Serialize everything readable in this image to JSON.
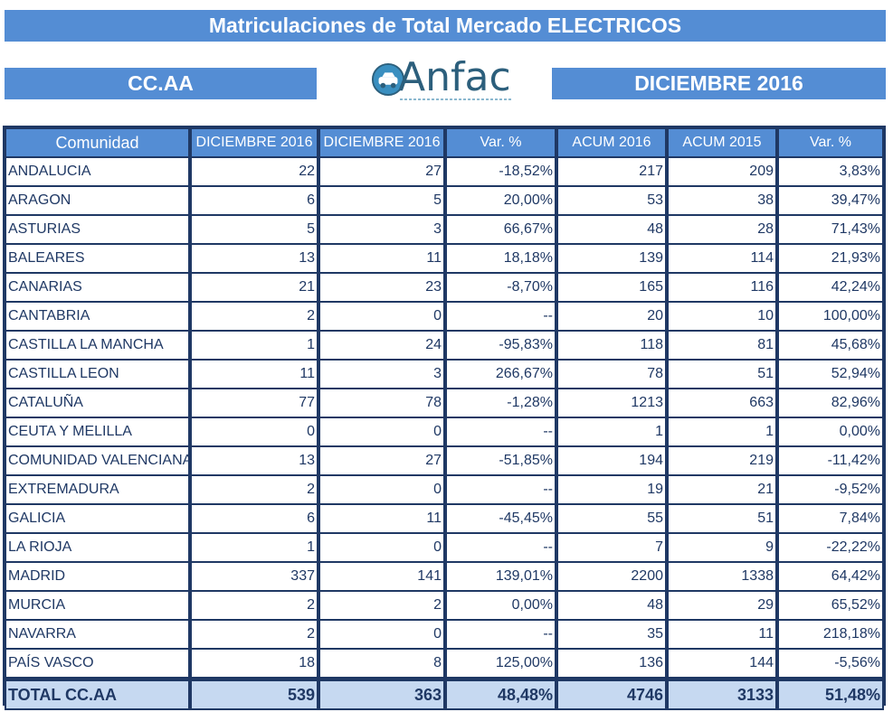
{
  "header": {
    "title": "Matriculaciones de Total Mercado ELECTRICOS",
    "region_label": "CC.AA",
    "period_label": "DICIEMBRE 2016",
    "logo_text": "Anfac"
  },
  "colors": {
    "banner": "#548dd4",
    "border": "#1f3864",
    "total_row": "#c6d9f1",
    "text": "#1f3864"
  },
  "table": {
    "columns": [
      "Comunidad",
      "DICIEMBRE  2016",
      "DICIEMBRE  2016",
      "Var. %",
      "ACUM 2016",
      "ACUM 2015",
      "Var. %"
    ],
    "rows": [
      [
        "ANDALUCIA",
        "22",
        "27",
        "-18,52%",
        "217",
        "209",
        "3,83%"
      ],
      [
        "ARAGON",
        "6",
        "5",
        "20,00%",
        "53",
        "38",
        "39,47%"
      ],
      [
        "ASTURIAS",
        "5",
        "3",
        "66,67%",
        "48",
        "28",
        "71,43%"
      ],
      [
        "BALEARES",
        "13",
        "11",
        "18,18%",
        "139",
        "114",
        "21,93%"
      ],
      [
        "CANARIAS",
        "21",
        "23",
        "-8,70%",
        "165",
        "116",
        "42,24%"
      ],
      [
        "CANTABRIA",
        "2",
        "0",
        "--",
        "20",
        "10",
        "100,00%"
      ],
      [
        "CASTILLA LA MANCHA",
        "1",
        "24",
        "-95,83%",
        "118",
        "81",
        "45,68%"
      ],
      [
        "CASTILLA LEON",
        "11",
        "3",
        "266,67%",
        "78",
        "51",
        "52,94%"
      ],
      [
        "CATALUÑA",
        "77",
        "78",
        "-1,28%",
        "1213",
        "663",
        "82,96%"
      ],
      [
        "CEUTA Y MELILLA",
        "0",
        "0",
        "--",
        "1",
        "1",
        "0,00%"
      ],
      [
        "COMUNIDAD VALENCIANA",
        "13",
        "27",
        "-51,85%",
        "194",
        "219",
        "-11,42%"
      ],
      [
        "EXTREMADURA",
        "2",
        "0",
        "--",
        "19",
        "21",
        "-9,52%"
      ],
      [
        "GALICIA",
        "6",
        "11",
        "-45,45%",
        "55",
        "51",
        "7,84%"
      ],
      [
        "LA RIOJA",
        "1",
        "0",
        "--",
        "7",
        "9",
        "-22,22%"
      ],
      [
        "MADRID",
        "337",
        "141",
        "139,01%",
        "2200",
        "1338",
        "64,42%"
      ],
      [
        "MURCIA",
        "2",
        "2",
        "0,00%",
        "48",
        "29",
        "65,52%"
      ],
      [
        "NAVARRA",
        "2",
        "0",
        "--",
        "35",
        "11",
        "218,18%"
      ],
      [
        "PAÍS VASCO",
        "18",
        "8",
        "125,00%",
        "136",
        "144",
        "-5,56%"
      ]
    ],
    "total": [
      "TOTAL CC.AA",
      "539",
      "363",
      "48,48%",
      "4746",
      "3133",
      "51,48%"
    ]
  }
}
